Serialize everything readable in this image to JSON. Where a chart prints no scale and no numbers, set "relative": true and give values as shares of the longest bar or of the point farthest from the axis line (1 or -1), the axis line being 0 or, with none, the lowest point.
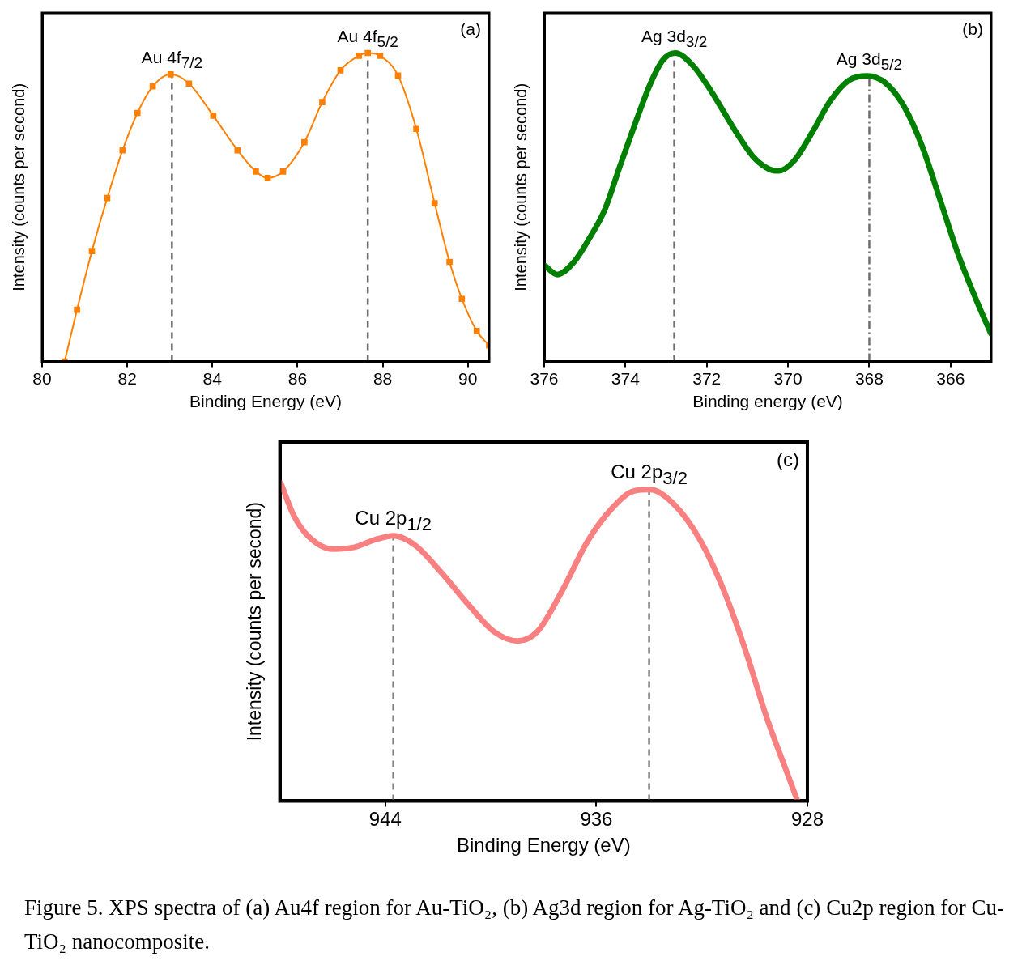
{
  "chart_data": [
    {
      "type": "line",
      "relative": true,
      "xlabel": "Binding Energy (eV)",
      "ylabel": "Intensity (counts per second)",
      "xlim": [
        80,
        90.5
      ],
      "xticks": [
        80,
        82,
        84,
        86,
        88,
        90
      ],
      "marker": "square",
      "grid": false,
      "legend": false,
      "x": [
        80.53,
        80.82,
        81.17,
        81.53,
        81.89,
        82.24,
        82.6,
        83.02,
        83.45,
        84.02,
        84.59,
        85.02,
        85.3,
        85.66,
        86.16,
        86.58,
        87.01,
        87.44,
        87.65,
        87.94,
        88.36,
        88.79,
        89.22,
        89.57,
        89.86,
        90.21,
        90.5
      ],
      "series": [
        {
          "color": "#ff8000",
          "values": [
            0,
            0.168,
            0.358,
            0.53,
            0.685,
            0.806,
            0.892,
            0.931,
            0.901,
            0.797,
            0.685,
            0.616,
            0.595,
            0.616,
            0.711,
            0.841,
            0.944,
            0.991,
            1,
            0.991,
            0.927,
            0.754,
            0.513,
            0.323,
            0.203,
            0.099,
            0.052
          ]
        }
      ],
      "ref_lines": [
        {
          "axis": "x",
          "value": 83.05,
          "color": "#6e6e6e",
          "line_style": "dashed"
        },
        {
          "axis": "x",
          "value": 87.65,
          "color": "#6e6e6e",
          "line_style": "dashed"
        }
      ],
      "annotations": [
        {
          "text": "Au 4f$_{7/2}$",
          "x": 83.05,
          "y": 0.931
        },
        {
          "text": "Au 4f$_{5/2}$",
          "x": 87.65,
          "y": 1
        },
        "(a)"
      ]
    },
    {
      "type": "line",
      "relative": true,
      "xlabel": "Binding energy (eV)",
      "ylabel": "Intensity (counts per second)",
      "xlim": [
        376,
        365
      ],
      "xticks": [
        376,
        374,
        372,
        370,
        368,
        366
      ],
      "grid": false,
      "legend": false,
      "x": [
        375.98,
        375.68,
        375.26,
        374.89,
        374.51,
        374.14,
        373.76,
        373.38,
        373.08,
        372.78,
        372.33,
        371.88,
        371.28,
        370.83,
        370.45,
        370.23,
        369.85,
        369.4,
        368.95,
        368.5,
        368.05,
        367.6,
        367.15,
        366.7,
        366.25,
        365.8,
        365.35,
        365.01
      ],
      "series": [
        {
          "color": "#008000",
          "values": [
            0.31,
            0.282,
            0.324,
            0.399,
            0.492,
            0.632,
            0.772,
            0.903,
            0.977,
            1,
            0.958,
            0.874,
            0.744,
            0.66,
            0.623,
            0.618,
            0.651,
            0.744,
            0.847,
            0.912,
            0.926,
            0.903,
            0.828,
            0.698,
            0.521,
            0.343,
            0.194,
            0.091
          ]
        }
      ],
      "ref_lines": [
        {
          "axis": "x",
          "value": 372.8,
          "color": "#6e6e6e",
          "line_style": "dashed"
        },
        {
          "axis": "x",
          "value": 368.0,
          "color": "#6e6e6e",
          "line_style": "dashdot"
        }
      ],
      "annotations": [
        {
          "text": "Ag 3d$_{3/2}$",
          "x": 372.8,
          "y": 1
        },
        {
          "text": "Ag 3d$_{5/2}$",
          "x": 368.0,
          "y": 0.926
        },
        "(b)"
      ]
    },
    {
      "type": "line",
      "relative": true,
      "xlabel": "Binding Energy (eV)",
      "ylabel": "Intensity (counts per second)",
      "xlim": [
        948,
        928
      ],
      "xticks": [
        944,
        936,
        928
      ],
      "grid": false,
      "legend": false,
      "x": [
        947.96,
        947.48,
        946.94,
        945.99,
        945.17,
        944.37,
        943.69,
        942.87,
        941.92,
        940.83,
        939.88,
        938.99,
        938.24,
        937.29,
        936.34,
        935.39,
        934.57,
        933.96,
        933.07,
        932.12,
        931.17,
        930.35,
        929.54,
        928.86,
        928.38
      ],
      "series": [
        {
          "color": "#f88080",
          "values": [
            1,
            0.9,
            0.835,
            0.793,
            0.799,
            0.823,
            0.835,
            0.805,
            0.723,
            0.616,
            0.533,
            0.504,
            0.533,
            0.663,
            0.817,
            0.923,
            0.976,
            0.98,
            0.935,
            0.829,
            0.663,
            0.475,
            0.262,
            0.109,
            0.002
          ]
        }
      ],
      "ref_lines": [
        {
          "axis": "x",
          "value": 943.7,
          "color": "#808080",
          "line_style": "dashed"
        },
        {
          "axis": "x",
          "value": 934.0,
          "color": "#808080",
          "line_style": "dashed"
        }
      ],
      "annotations": [
        {
          "text": "Cu 2p$_{1/2}$",
          "x": 943.7,
          "y": 0.835
        },
        {
          "text": "Cu 2p$_{3/2}$",
          "x": 934.0,
          "y": 0.98
        },
        "(c)"
      ]
    },
    {
      "type": "other",
      "annotations": [
        "Figure 5. XPS spectra of (a) Au4f region for Au-TiO₂, (b) Ag3d region for Ag-TiO₂ and (c) Cu2p region for Cu-TiO₂ nanocomposite."
      ]
    }
  ]
}
